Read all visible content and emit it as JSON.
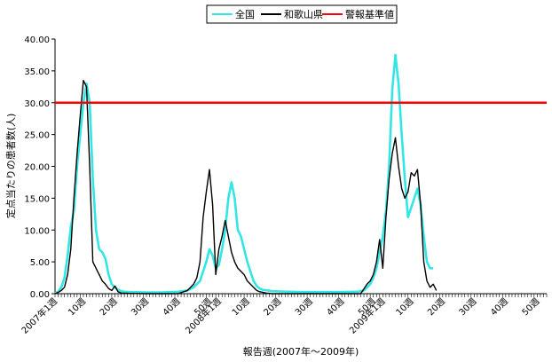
{
  "chart_data": {
    "type": "line",
    "title": "",
    "xlabel": "報告週(2007年〜2009年)",
    "ylabel": "定点当たりの患者数(人)",
    "ylim": [
      0,
      40
    ],
    "yticks": [
      "0.00",
      "5.00",
      "10.00",
      "15.00",
      "20.00",
      "25.00",
      "30.00",
      "35.00",
      "40.00"
    ],
    "x_range": [
      1,
      157
    ],
    "grid": false,
    "legend_position": "top-center",
    "xticks": [
      {
        "week": 1,
        "label": "2007年1週"
      },
      {
        "week": 10,
        "label": "10週"
      },
      {
        "week": 20,
        "label": "20週"
      },
      {
        "week": 30,
        "label": "30週"
      },
      {
        "week": 40,
        "label": "40週"
      },
      {
        "week": 50,
        "label": "50週"
      },
      {
        "week": 53,
        "label": "2008年1週"
      },
      {
        "week": 62,
        "label": "10週"
      },
      {
        "week": 72,
        "label": "20週"
      },
      {
        "week": 82,
        "label": "30週"
      },
      {
        "week": 92,
        "label": "40週"
      },
      {
        "week": 102,
        "label": "50週"
      },
      {
        "week": 105,
        "label": "2009年1週"
      },
      {
        "week": 114,
        "label": "10週"
      },
      {
        "week": 124,
        "label": "20週"
      },
      {
        "week": 134,
        "label": "30週"
      },
      {
        "week": 144,
        "label": "40週"
      },
      {
        "week": 154,
        "label": "50週"
      }
    ],
    "series": [
      {
        "name": "全国",
        "color": "#33e6e6",
        "points": [
          [
            1,
            0.1
          ],
          [
            2,
            0.3
          ],
          [
            3,
            1.0
          ],
          [
            4,
            2.5
          ],
          [
            5,
            6.0
          ],
          [
            6,
            10.5
          ],
          [
            7,
            13.0
          ],
          [
            8,
            20.0
          ],
          [
            9,
            25.0
          ],
          [
            10,
            30.0
          ],
          [
            11,
            33.0
          ],
          [
            12,
            30.0
          ],
          [
            13,
            18.0
          ],
          [
            14,
            10.0
          ],
          [
            15,
            7.0
          ],
          [
            16,
            6.5
          ],
          [
            17,
            5.5
          ],
          [
            18,
            3.0
          ],
          [
            19,
            1.5
          ],
          [
            20,
            1.0
          ],
          [
            21,
            0.6
          ],
          [
            22,
            0.4
          ],
          [
            23,
            0.3
          ],
          [
            25,
            0.25
          ],
          [
            30,
            0.2
          ],
          [
            35,
            0.2
          ],
          [
            40,
            0.3
          ],
          [
            43,
            0.5
          ],
          [
            45,
            1.0
          ],
          [
            47,
            2.0
          ],
          [
            48,
            3.5
          ],
          [
            49,
            5.0
          ],
          [
            50,
            7.0
          ],
          [
            51,
            6.0
          ],
          [
            52,
            4.0
          ],
          [
            53,
            4.5
          ],
          [
            54,
            7.0
          ],
          [
            55,
            10.0
          ],
          [
            56,
            15.0
          ],
          [
            57,
            17.5
          ],
          [
            58,
            15.0
          ],
          [
            59,
            10.0
          ],
          [
            60,
            9.0
          ],
          [
            61,
            7.0
          ],
          [
            62,
            5.0
          ],
          [
            63,
            3.5
          ],
          [
            64,
            2.0
          ],
          [
            65,
            1.2
          ],
          [
            66,
            0.8
          ],
          [
            67,
            0.6
          ],
          [
            70,
            0.4
          ],
          [
            75,
            0.3
          ],
          [
            80,
            0.25
          ],
          [
            90,
            0.25
          ],
          [
            97,
            0.3
          ],
          [
            99,
            0.5
          ],
          [
            100,
            1.0
          ],
          [
            101,
            1.5
          ],
          [
            102,
            2.5
          ],
          [
            103,
            4.0
          ],
          [
            104,
            6.5
          ],
          [
            105,
            9.0
          ],
          [
            106,
            13.0
          ],
          [
            107,
            20.0
          ],
          [
            108,
            32.0
          ],
          [
            109,
            37.5
          ],
          [
            110,
            33.0
          ],
          [
            111,
            25.0
          ],
          [
            112,
            18.0
          ],
          [
            113,
            12.0
          ],
          [
            114,
            13.5
          ],
          [
            115,
            15.0
          ],
          [
            116,
            16.5
          ],
          [
            117,
            14.0
          ],
          [
            118,
            9.0
          ],
          [
            119,
            5.0
          ],
          [
            120,
            4.0
          ],
          [
            121,
            4.0
          ]
        ]
      },
      {
        "name": "和歌山県",
        "color": "#000000",
        "points": [
          [
            1,
            0.0
          ],
          [
            2,
            0.2
          ],
          [
            3,
            0.5
          ],
          [
            4,
            1.0
          ],
          [
            5,
            3.0
          ],
          [
            6,
            7.0
          ],
          [
            7,
            15.0
          ],
          [
            8,
            22.0
          ],
          [
            9,
            28.0
          ],
          [
            10,
            33.5
          ],
          [
            11,
            32.5
          ],
          [
            12,
            20.0
          ],
          [
            13,
            5.0
          ],
          [
            14,
            4.0
          ],
          [
            15,
            3.0
          ],
          [
            16,
            2.0
          ],
          [
            17,
            1.5
          ],
          [
            18,
            0.8
          ],
          [
            19,
            0.5
          ],
          [
            20,
            1.2
          ],
          [
            21,
            0.3
          ],
          [
            22,
            0.1
          ],
          [
            25,
            0.05
          ],
          [
            30,
            0.0
          ],
          [
            40,
            0.0
          ],
          [
            43,
            0.5
          ],
          [
            45,
            1.5
          ],
          [
            46,
            2.5
          ],
          [
            47,
            5.0
          ],
          [
            48,
            12.0
          ],
          [
            49,
            16.0
          ],
          [
            50,
            19.5
          ],
          [
            51,
            14.0
          ],
          [
            52,
            3.0
          ],
          [
            53,
            7.0
          ],
          [
            54,
            9.0
          ],
          [
            55,
            11.5
          ],
          [
            56,
            9.0
          ],
          [
            57,
            6.5
          ],
          [
            58,
            5.0
          ],
          [
            59,
            4.0
          ],
          [
            60,
            3.5
          ],
          [
            61,
            3.0
          ],
          [
            62,
            2.0
          ],
          [
            63,
            1.5
          ],
          [
            64,
            1.0
          ],
          [
            65,
            0.5
          ],
          [
            66,
            0.3
          ],
          [
            68,
            0.1
          ],
          [
            70,
            0.0
          ],
          [
            98,
            0.0
          ],
          [
            100,
            1.5
          ],
          [
            101,
            2.0
          ],
          [
            102,
            3.0
          ],
          [
            103,
            5.0
          ],
          [
            104,
            8.5
          ],
          [
            105,
            4.0
          ],
          [
            106,
            12.0
          ],
          [
            107,
            18.0
          ],
          [
            108,
            22.0
          ],
          [
            109,
            24.5
          ],
          [
            110,
            20.0
          ],
          [
            111,
            16.5
          ],
          [
            112,
            15.0
          ],
          [
            113,
            16.0
          ],
          [
            114,
            19.0
          ],
          [
            115,
            18.5
          ],
          [
            116,
            19.5
          ],
          [
            117,
            14.0
          ],
          [
            118,
            5.0
          ],
          [
            119,
            2.0
          ],
          [
            120,
            1.0
          ],
          [
            121,
            1.5
          ],
          [
            122,
            0.5
          ]
        ]
      },
      {
        "name": "警報基準値",
        "color": "#ff0000",
        "points": [
          [
            1,
            30.0
          ],
          [
            157,
            30.0
          ]
        ]
      }
    ]
  }
}
